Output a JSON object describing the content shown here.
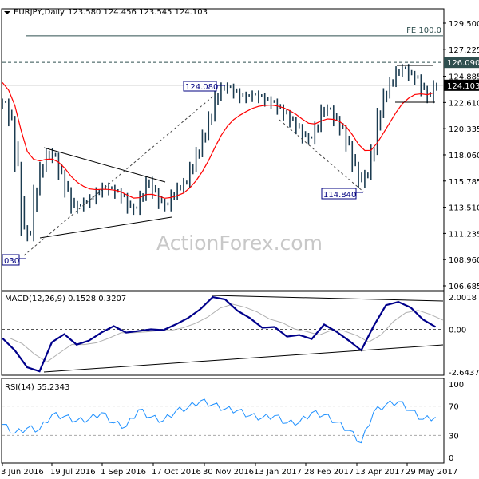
{
  "header": {
    "symbol": "EURJPY,Daily",
    "ohlc": "123.580 124.456 123.545 124.103"
  },
  "watermark": "ActionForex.com",
  "colors": {
    "bars": "#1b3b50",
    "ma": "#ff0000",
    "macd": "#00008b",
    "signal": "#b0b0b0",
    "rsi": "#1e90ff",
    "annotation": "#000080"
  },
  "chart_data": [
    {
      "type": "ohlc",
      "title": "EURJPY,Daily",
      "ylim": [
        106.685,
        129.5
      ],
      "yticks": [
        "129.500",
        "127.225",
        "124.885",
        "122.610",
        "120.335",
        "118.060",
        "115.785",
        "113.510",
        "111.235",
        "108.960",
        "106.685"
      ],
      "ytick_values": [
        129.5,
        127.225,
        124.885,
        122.61,
        120.335,
        118.06,
        115.785,
        113.51,
        111.235,
        108.96,
        106.685
      ],
      "current_price": "124.103",
      "current_value": 124.103,
      "level_label": "126.090",
      "level_value": 126.09,
      "fe_label": "FE 100.0",
      "fe_value": 128.4,
      "annotations": [
        {
          "label": "124.080",
          "value": 124.08
        },
        {
          "label": "114.840",
          "value": 114.84
        },
        {
          "label": "030",
          "value": 109.03
        }
      ],
      "closes": [
        122.5,
        121,
        117,
        111.5,
        111,
        115,
        117,
        118.2,
        117.8,
        116.3,
        114.8,
        113.4,
        113.6,
        113.9,
        114.2,
        114.8,
        115.2,
        115,
        114.7,
        114.3,
        113.4,
        113.3,
        114.5,
        115.7,
        114.7,
        113.8,
        113.6,
        114.6,
        115.2,
        115.6,
        117,
        118.3,
        119.8,
        121.4,
        123.2,
        123.9,
        123.8,
        123.4,
        123,
        123.1,
        123.2,
        123,
        122.7,
        122.5,
        122,
        121.5,
        120.9,
        120.3,
        119.5,
        119.4,
        120.5,
        122,
        121.9,
        121,
        120.2,
        118.8,
        117,
        115.6,
        116.3,
        118.5,
        121.7,
        123.4,
        124.4,
        125.3,
        125.5,
        124.9,
        124.6,
        123.6,
        123,
        124.1
      ]
    },
    {
      "type": "line",
      "title": "MACD(12,26,9) 0.1528 0.3207",
      "ylim": [
        -2.6437,
        2.0018
      ],
      "yticks": [
        "2.0018",
        "0.00",
        "-2.6437"
      ],
      "ytick_values": [
        2.0018,
        0,
        -2.6437
      ],
      "values": [
        -0.55,
        -1.3,
        -2.35,
        -2.6,
        -0.8,
        -0.3,
        -0.95,
        -0.7,
        -0.2,
        0.2,
        -0.2,
        -0.1,
        0.0,
        -0.05,
        0.3,
        0.7,
        1.25,
        2.0,
        1.85,
        1.15,
        0.7,
        0.1,
        0.15,
        -0.45,
        -0.35,
        -0.6,
        0.3,
        -0.15,
        -0.7,
        -1.3,
        0.2,
        1.5,
        1.7,
        1.35,
        0.6,
        0.15
      ]
    },
    {
      "type": "line",
      "title": "RSI(14) 55.2343",
      "ylim": [
        0,
        100
      ],
      "yticks": [
        "100",
        "70",
        "30",
        "0"
      ],
      "ytick_values": [
        100,
        70,
        30,
        0
      ],
      "values": [
        45,
        33,
        40,
        38,
        58,
        56,
        50,
        52,
        61,
        47,
        42,
        65,
        55,
        50,
        63,
        68,
        77,
        72,
        66,
        64,
        57,
        54,
        57,
        47,
        48,
        61,
        58,
        48,
        37,
        20,
        62,
        72,
        76,
        64,
        52,
        55
      ]
    }
  ],
  "xaxis": {
    "labels": [
      "3 Jun 2016",
      "19 Jul 2016",
      "1 Sep 2016",
      "17 Oct 2016",
      "30 Nov 2016",
      "13 Jan 2017",
      "28 Feb 2017",
      "13 Apr 2017",
      "29 May 2017"
    ]
  }
}
